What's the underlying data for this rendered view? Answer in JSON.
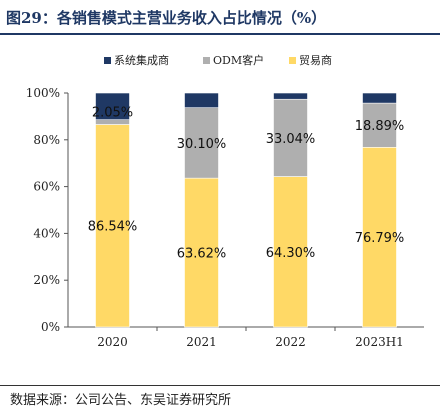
{
  "header": {
    "title": "图29：各销售模式主营业务收入占比情况（%）"
  },
  "footer": {
    "source": "数据来源：公司公告、东吴证券研究所"
  },
  "chart_data": {
    "type": "bar",
    "stacked": true,
    "categories": [
      "2020",
      "2021",
      "2022",
      "2023H1"
    ],
    "series": [
      {
        "name": "贸易商",
        "color": "#ffd966",
        "values": [
          86.54,
          63.62,
          64.3,
          76.79
        ],
        "labels": [
          "86.54%",
          "63.62%",
          "64.30%",
          "76.79%"
        ]
      },
      {
        "name": "ODM客户",
        "color": "#afafaf",
        "values": [
          2.05,
          30.1,
          33.04,
          18.89
        ],
        "labels": [
          "2.05%",
          "30.10%",
          "33.04%",
          "18.89%"
        ]
      },
      {
        "name": "系统集成商",
        "color": "#1f3864",
        "values": [
          11.41,
          6.28,
          2.66,
          4.32
        ],
        "labels": []
      }
    ],
    "legend_order": [
      "系统集成商",
      "ODM客户",
      "贸易商"
    ],
    "legend_position": "top",
    "ylim": [
      0,
      100
    ],
    "yticks": [
      "0%",
      "20%",
      "40%",
      "60%",
      "80%",
      "100%"
    ],
    "grid": false
  }
}
